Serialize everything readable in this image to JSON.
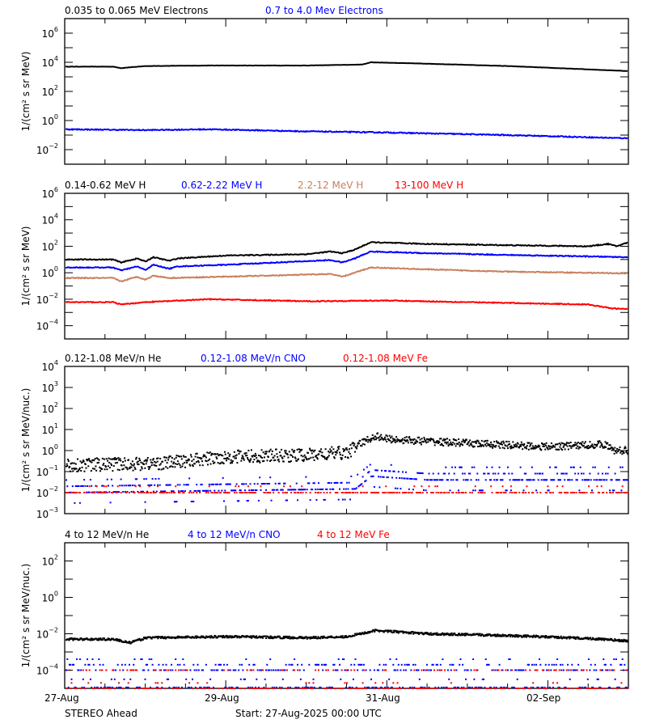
{
  "footer": {
    "spacecraft": "STEREO Ahead",
    "start": "Start: 27-Aug-2025 00:00 UTC"
  },
  "x_axis": {
    "tick_labels": [
      "27-Aug",
      "29-Aug",
      "31-Aug",
      "02-Sep"
    ],
    "tick_days": [
      0,
      2,
      4,
      6
    ],
    "range_days": [
      0,
      7
    ]
  },
  "chart_data": [
    {
      "type": "line",
      "ylabel": "1/(cm² s sr MeV)",
      "yscale": "log",
      "ylim": [
        0.001,
        10000000
      ],
      "ytick_exponents": [
        -2,
        0,
        2,
        4,
        6
      ],
      "series": [
        {
          "name": "0.035 to 0.065 MeV Electrons",
          "color": "#000000",
          "x": [
            0,
            0.6,
            0.7,
            1.0,
            1.8,
            3.0,
            3.7,
            3.8,
            4.5,
            5.5,
            7.0
          ],
          "y": [
            5000,
            5000,
            4000,
            5500,
            6000,
            6000,
            7000,
            10000,
            8000,
            5500,
            2500
          ]
        },
        {
          "name": "0.7 to 4.0 Mev Electrons",
          "color": "#0000ff",
          "x": [
            0,
            1.0,
            1.8,
            3.0,
            4.0,
            5.5,
            7.0
          ],
          "y": [
            0.25,
            0.22,
            0.25,
            0.18,
            0.15,
            0.1,
            0.06
          ]
        }
      ]
    },
    {
      "type": "line",
      "ylabel": "1/(cm² s sr MeV)",
      "yscale": "log",
      "ylim": [
        1e-05,
        1000000
      ],
      "ytick_exponents": [
        -4,
        -2,
        0,
        2,
        4,
        6
      ],
      "series": [
        {
          "name": "0.14-0.62 MeV H",
          "color": "#000000",
          "x": [
            0,
            0.6,
            0.7,
            0.9,
            1.0,
            1.1,
            1.3,
            1.4,
            2.0,
            3.0,
            3.3,
            3.45,
            3.6,
            3.8,
            4.5,
            5.5,
            6.5,
            6.75,
            6.85,
            7.0
          ],
          "y": [
            10,
            10,
            6,
            12,
            7,
            15,
            8,
            12,
            20,
            25,
            40,
            30,
            55,
            200,
            150,
            120,
            100,
            150,
            100,
            200
          ]
        },
        {
          "name": "0.62-2.22 MeV H",
          "color": "#0000ff",
          "x": [
            0,
            0.6,
            0.7,
            0.9,
            1.0,
            1.1,
            1.3,
            1.4,
            2.0,
            3.3,
            3.45,
            3.6,
            3.8,
            4.5,
            5.5,
            7.0
          ],
          "y": [
            2.5,
            2.5,
            1.5,
            3,
            1.6,
            4,
            2,
            3,
            4,
            9,
            6,
            12,
            40,
            30,
            22,
            15
          ]
        },
        {
          "name": "2.2-12 MeV H",
          "color": "#c8805e",
          "x": [
            0,
            0.6,
            0.7,
            0.9,
            1.0,
            1.1,
            1.3,
            2.5,
            3.3,
            3.45,
            3.6,
            3.8,
            4.5,
            5.5,
            7.0
          ],
          "y": [
            0.4,
            0.4,
            0.22,
            0.5,
            0.3,
            0.6,
            0.4,
            0.6,
            0.8,
            0.5,
            1.0,
            2.5,
            1.8,
            1.2,
            0.9
          ]
        },
        {
          "name": "13-100 MeV H",
          "color": "#ff0000",
          "x": [
            0,
            0.6,
            0.7,
            1.0,
            1.8,
            3.0,
            4.0,
            5.0,
            6.5,
            6.8,
            7.0
          ],
          "y": [
            0.006,
            0.006,
            0.004,
            0.006,
            0.01,
            0.007,
            0.008,
            0.006,
            0.004,
            0.002,
            0.0018
          ]
        }
      ]
    },
    {
      "type": "scatter",
      "ylabel": "1/(cm² s sr MeV/nuc.)",
      "yscale": "log",
      "ylim": [
        0.001,
        10000
      ],
      "ytick_exponents": [
        -3,
        -2,
        -1,
        0,
        1,
        2,
        3,
        4
      ],
      "series": [
        {
          "name": "0.12-1.08 MeV/n He",
          "color": "#000000",
          "x": [
            0,
            1.2,
            1.6,
            2.0,
            3.0,
            3.5,
            3.65,
            3.85,
            4.0,
            5.0,
            6.0,
            6.7,
            6.8,
            7.0
          ],
          "y": [
            0.2,
            0.25,
            0.35,
            0.5,
            0.6,
            0.8,
            2,
            5,
            3.5,
            2.2,
            1.5,
            2,
            1,
            1
          ]
        },
        {
          "name": "0.12-1.08 MeV/n CNO",
          "color": "#0000ff",
          "x": [
            0,
            3.6,
            3.8,
            4.5,
            7.0
          ],
          "y": [
            0.01,
            0.015,
            0.06,
            0.04,
            0.04
          ]
        },
        {
          "name": "0.12-1.08 MeV Fe",
          "color": "#ff0000",
          "x": [
            0,
            7.0
          ],
          "y": [
            0.01,
            0.01
          ]
        }
      ]
    },
    {
      "type": "scatter",
      "ylabel": "1/(cm² s sr MeV/nuc.)",
      "yscale": "log",
      "ylim": [
        1e-05,
        1000
      ],
      "ytick_exponents": [
        -4,
        -2,
        0,
        2
      ],
      "series": [
        {
          "name": "4 to 12 MeV/n He",
          "color": "#000000",
          "x": [
            0,
            0.6,
            0.8,
            1.0,
            2.0,
            3.0,
            3.5,
            3.75,
            3.85,
            4.5,
            5.5,
            6.5,
            7.0
          ],
          "y": [
            0.005,
            0.005,
            0.0032,
            0.006,
            0.007,
            0.006,
            0.007,
            0.012,
            0.015,
            0.01,
            0.008,
            0.0055,
            0.004
          ]
        },
        {
          "name": "4 to 12 MeV/n CNO",
          "color": "#0000ff",
          "x": [
            0,
            7.0
          ],
          "y": [
            0.0001,
            0.0001
          ]
        },
        {
          "name": "4 to 12 MeV Fe",
          "color": "#ff0000",
          "x": [
            0,
            7.0
          ],
          "y": [
            1e-05,
            1e-05
          ]
        }
      ]
    }
  ]
}
